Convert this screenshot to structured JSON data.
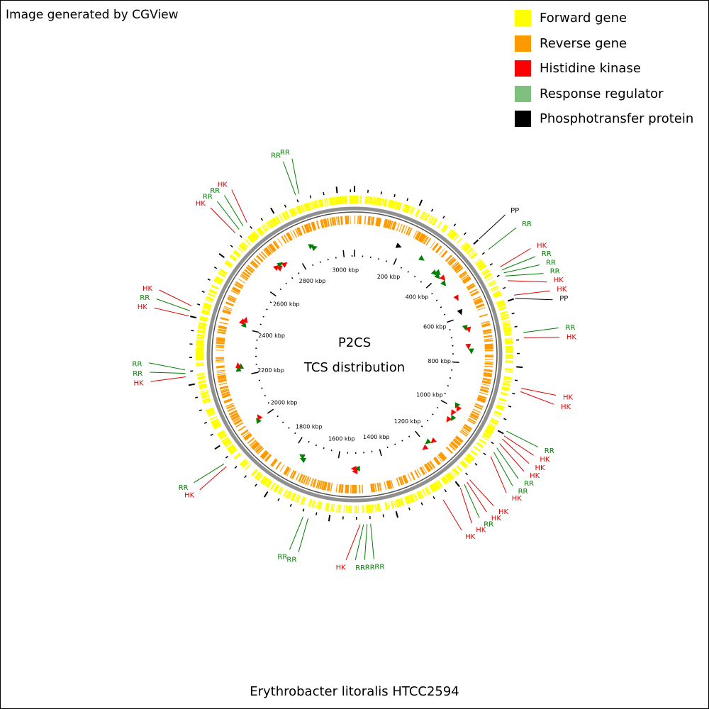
{
  "credit": "Image generated by CGView",
  "caption": "Erythrobacter litoralis HTCC2594",
  "center": {
    "line1": "P2CS",
    "line2": "TCS distribution"
  },
  "legend": [
    {
      "label": "Forward gene",
      "color": "#ffff00"
    },
    {
      "label": "Reverse gene",
      "color": "#ff9900"
    },
    {
      "label": "Histidine kinase",
      "color": "#ff0000"
    },
    {
      "label": "Response regulator",
      "color": "#7fbf7f"
    },
    {
      "label": "Phosphotransfer protein",
      "color": "#000000"
    }
  ],
  "colors": {
    "HK": "#e00000",
    "RR": "#008000",
    "PP": "#000000",
    "arrow_green": "#008000",
    "arrow_red": "#ff0000",
    "backbone": "#808080"
  },
  "genome_length_kbp": 3052,
  "scale_labels": [
    "200 kbp",
    "400 kbp",
    "600 kbp",
    "800 kbp",
    "1000 kbp",
    "1200 kbp",
    "1400 kbp",
    "1600 kbp",
    "1800 kbp",
    "2000 kbp",
    "2200 kbp",
    "2400 kbp",
    "2600 kbp",
    "2800 kbp",
    "3000 kbp"
  ],
  "features": [
    {
      "type": "PP",
      "kbp": 400
    },
    {
      "type": "RR",
      "kbp": 440
    },
    {
      "type": "HK",
      "kbp": 500
    },
    {
      "type": "RR",
      "kbp": 510
    },
    {
      "type": "RR",
      "kbp": 520
    },
    {
      "type": "RR",
      "kbp": 530
    },
    {
      "type": "HK",
      "kbp": 545
    },
    {
      "type": "HK",
      "kbp": 590
    },
    {
      "type": "PP",
      "kbp": 600
    },
    {
      "type": "RR",
      "kbp": 700
    },
    {
      "type": "HK",
      "kbp": 715
    },
    {
      "type": "HK",
      "kbp": 860
    },
    {
      "type": "HK",
      "kbp": 870
    },
    {
      "type": "RR",
      "kbp": 990
    },
    {
      "type": "HK",
      "kbp": 1005
    },
    {
      "type": "HK",
      "kbp": 1015
    },
    {
      "type": "HK",
      "kbp": 1030
    },
    {
      "type": "RR",
      "kbp": 1045
    },
    {
      "type": "RR",
      "kbp": 1060
    },
    {
      "type": "HK",
      "kbp": 1075
    },
    {
      "type": "HK",
      "kbp": 1165
    },
    {
      "type": "HK",
      "kbp": 1175
    },
    {
      "type": "RR",
      "kbp": 1185
    },
    {
      "type": "HK",
      "kbp": 1200
    },
    {
      "type": "HK",
      "kbp": 1260
    },
    {
      "type": "RR",
      "kbp": 1480
    },
    {
      "type": "RR",
      "kbp": 1490
    },
    {
      "type": "RR",
      "kbp": 1500
    },
    {
      "type": "HK",
      "kbp": 1510
    },
    {
      "type": "RR",
      "kbp": 1660
    },
    {
      "type": "RR",
      "kbp": 1675
    },
    {
      "type": "HK",
      "kbp": 1940
    },
    {
      "type": "RR",
      "kbp": 1950
    },
    {
      "type": "HK",
      "kbp": 2225
    },
    {
      "type": "RR",
      "kbp": 2235
    },
    {
      "type": "RR",
      "kbp": 2245
    },
    {
      "type": "HK",
      "kbp": 2400
    },
    {
      "type": "RR",
      "kbp": 2415
    },
    {
      "type": "HK",
      "kbp": 2430
    },
    {
      "type": "HK",
      "kbp": 2675
    },
    {
      "type": "RR",
      "kbp": 2690
    },
    {
      "type": "RR",
      "kbp": 2705
    },
    {
      "type": "HK",
      "kbp": 2720
    },
    {
      "type": "RR",
      "kbp": 2880
    },
    {
      "type": "RR",
      "kbp": 2890
    }
  ],
  "inner_arrows": [
    {
      "kbp": 300,
      "color": "green"
    },
    {
      "kbp": 380,
      "color": "green"
    },
    {
      "kbp": 390,
      "color": "green"
    },
    {
      "kbp": 400,
      "color": "green"
    },
    {
      "kbp": 420,
      "color": "red"
    },
    {
      "kbp": 440,
      "color": "green"
    },
    {
      "kbp": 520,
      "color": "red"
    },
    {
      "kbp": 650,
      "color": "green"
    },
    {
      "kbp": 660,
      "color": "red"
    },
    {
      "kbp": 730,
      "color": "red"
    },
    {
      "kbp": 750,
      "color": "green"
    },
    {
      "kbp": 990,
      "color": "green"
    },
    {
      "kbp": 1000,
      "color": "red"
    },
    {
      "kbp": 1025,
      "color": "red"
    },
    {
      "kbp": 1045,
      "color": "green"
    },
    {
      "kbp": 1060,
      "color": "red"
    },
    {
      "kbp": 1170,
      "color": "red"
    },
    {
      "kbp": 1190,
      "color": "green"
    },
    {
      "kbp": 1215,
      "color": "red"
    },
    {
      "kbp": 1515,
      "color": "green"
    },
    {
      "kbp": 1525,
      "color": "red"
    },
    {
      "kbp": 1530,
      "color": "red"
    },
    {
      "kbp": 1750,
      "color": "green"
    },
    {
      "kbp": 1760,
      "color": "green"
    },
    {
      "kbp": 2000,
      "color": "green"
    },
    {
      "kbp": 2010,
      "color": "red"
    },
    {
      "kbp": 2230,
      "color": "green"
    },
    {
      "kbp": 2240,
      "color": "green"
    },
    {
      "kbp": 2245,
      "color": "red"
    },
    {
      "kbp": 2420,
      "color": "green"
    },
    {
      "kbp": 2430,
      "color": "red"
    },
    {
      "kbp": 2440,
      "color": "red"
    },
    {
      "kbp": 2700,
      "color": "red"
    },
    {
      "kbp": 2710,
      "color": "red"
    },
    {
      "kbp": 2720,
      "color": "green"
    },
    {
      "kbp": 2735,
      "color": "red"
    },
    {
      "kbp": 2870,
      "color": "green"
    },
    {
      "kbp": 2880,
      "color": "green"
    },
    {
      "kbp": 190,
      "color": "black"
    },
    {
      "kbp": 580,
      "color": "black"
    }
  ]
}
